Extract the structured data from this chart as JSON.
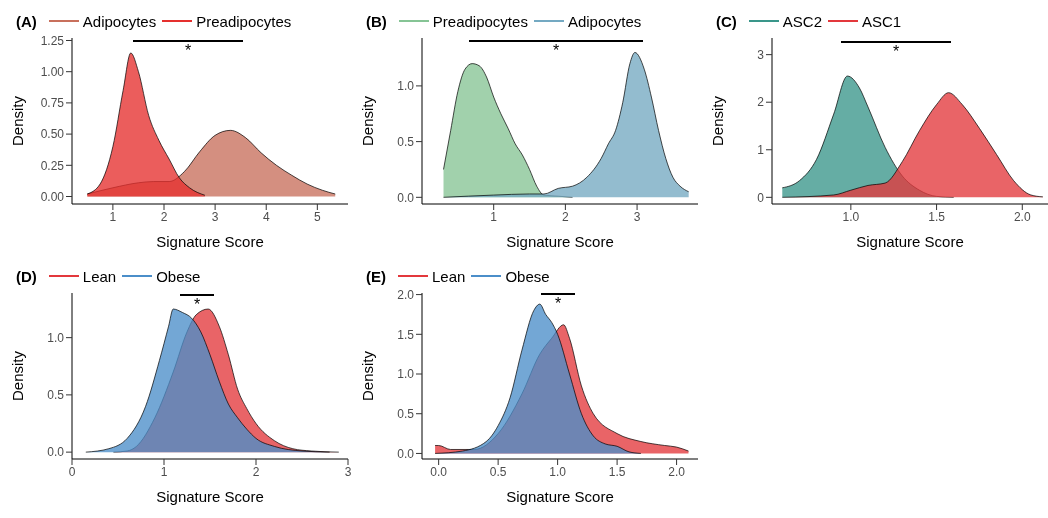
{
  "chart_data": [
    {
      "type": "area",
      "title": "(A)",
      "xlabel": "Signature Score",
      "ylabel": "Density",
      "legend": "top",
      "xlim": [
        0.2,
        5.6
      ],
      "ylim": [
        -0.06,
        1.27
      ],
      "xticks": [
        1,
        2,
        3,
        4,
        5
      ],
      "yticks": [
        {
          "value": 0,
          "label": "0.00"
        },
        {
          "value": 0.25,
          "label": "0.25"
        },
        {
          "value": 0.5,
          "label": "0.50"
        },
        {
          "value": 0.75,
          "label": "0.75"
        },
        {
          "value": 1,
          "label": "1.00"
        },
        {
          "value": 1.25,
          "label": "1.25"
        }
      ],
      "annotations": [
        "*"
      ],
      "series": [
        {
          "name": "Adipocytes",
          "color": "#c8705c",
          "x": [
            0.5,
            1.0,
            1.5,
            1.8,
            2.1,
            2.4,
            2.7,
            3.0,
            3.3,
            3.6,
            3.9,
            4.2,
            4.5,
            4.8,
            5.1,
            5.35
          ],
          "values": [
            0.02,
            0.07,
            0.11,
            0.12,
            0.12,
            0.2,
            0.36,
            0.49,
            0.53,
            0.47,
            0.35,
            0.25,
            0.17,
            0.1,
            0.05,
            0.02
          ]
        },
        {
          "name": "Preadipocytes",
          "color": "#e5302e",
          "x": [
            0.5,
            0.75,
            1.0,
            1.2,
            1.35,
            1.5,
            1.7,
            1.9,
            2.1,
            2.3,
            2.5,
            2.8
          ],
          "values": [
            0.02,
            0.1,
            0.4,
            0.85,
            1.15,
            1.0,
            0.65,
            0.45,
            0.3,
            0.15,
            0.07,
            0.01
          ]
        }
      ]
    },
    {
      "type": "area",
      "title": "(B)",
      "xlabel": "Signature Score",
      "ylabel": "Density",
      "legend": "top",
      "xlim": [
        0,
        3.85
      ],
      "ylim": [
        -0.06,
        1.43
      ],
      "xticks": [
        1,
        2,
        3
      ],
      "yticks": [
        {
          "value": 0,
          "label": "0.0"
        },
        0.5,
        {
          "value": 1,
          "label": "1.0"
        }
      ],
      "annotations": [
        "*"
      ],
      "series": [
        {
          "name": "Preadipocytes",
          "color": "#86c495",
          "x": [
            0.3,
            0.4,
            0.5,
            0.6,
            0.7,
            0.8,
            0.9,
            1.0,
            1.1,
            1.2,
            1.3,
            1.4,
            1.5,
            1.6,
            1.7,
            1.9,
            2.1
          ],
          "values": [
            0.25,
            0.6,
            0.95,
            1.15,
            1.2,
            1.18,
            1.08,
            0.9,
            0.75,
            0.62,
            0.48,
            0.38,
            0.25,
            0.1,
            0.02,
            0.01,
            0.0
          ]
        },
        {
          "name": "Adipocytes",
          "color": "#74a9c2",
          "x": [
            0.3,
            1.0,
            1.5,
            1.7,
            1.9,
            2.1,
            2.3,
            2.5,
            2.6,
            2.7,
            2.8,
            2.9,
            2.97,
            3.1,
            3.2,
            3.3,
            3.4,
            3.5,
            3.6,
            3.72
          ],
          "values": [
            0.0,
            0.02,
            0.03,
            0.03,
            0.08,
            0.1,
            0.18,
            0.35,
            0.48,
            0.6,
            0.85,
            1.2,
            1.3,
            1.15,
            0.9,
            0.6,
            0.35,
            0.18,
            0.1,
            0.05
          ]
        }
      ]
    },
    {
      "type": "area",
      "title": "(C)",
      "xlabel": "Signature Score",
      "ylabel": "Density",
      "legend": "top",
      "xlim": [
        0.54,
        2.15
      ],
      "ylim": [
        -0.14,
        3.35
      ],
      "xticks": [
        {
          "value": 1,
          "label": "1.0"
        },
        1.5,
        {
          "value": 2,
          "label": "2.0"
        }
      ],
      "yticks": [
        0,
        1,
        2,
        3
      ],
      "annotations": [
        "*"
      ],
      "series": [
        {
          "name": "ASC2",
          "color": "#3a968a",
          "x": [
            0.6,
            0.7,
            0.8,
            0.9,
            0.98,
            1.05,
            1.1,
            1.2,
            1.3,
            1.4,
            1.5,
            1.6
          ],
          "values": [
            0.2,
            0.35,
            0.8,
            1.75,
            2.55,
            2.3,
            1.9,
            1.05,
            0.45,
            0.15,
            0.02,
            0.0
          ]
        },
        {
          "name": "ASC1",
          "color": "#e3383c",
          "x": [
            0.6,
            0.9,
            1.0,
            1.1,
            1.2,
            1.3,
            1.4,
            1.5,
            1.57,
            1.65,
            1.75,
            1.85,
            1.95,
            2.05,
            2.12
          ],
          "values": [
            0.0,
            0.05,
            0.15,
            0.25,
            0.3,
            0.75,
            1.4,
            1.95,
            2.2,
            1.95,
            1.45,
            0.9,
            0.35,
            0.05,
            0.01
          ]
        }
      ]
    },
    {
      "type": "area",
      "title": "(D)",
      "xlabel": "Signature Score",
      "ylabel": "Density",
      "legend": "top",
      "xlim": [
        0,
        3.0
      ],
      "ylim": [
        -0.06,
        1.39
      ],
      "xticks": [
        0,
        1,
        2,
        3
      ],
      "yticks": [
        {
          "value": 0,
          "label": "0.0"
        },
        0.5,
        {
          "value": 1,
          "label": "1.0"
        }
      ],
      "annotations": [
        "*"
      ],
      "series": [
        {
          "name": "Lean",
          "color": "#e3383c",
          "x": [
            0.45,
            0.6,
            0.7,
            0.9,
            1.1,
            1.25,
            1.35,
            1.48,
            1.6,
            1.7,
            1.8,
            1.9,
            2.0,
            2.2,
            2.4,
            2.6,
            2.9
          ],
          "values": [
            0,
            0.01,
            0.05,
            0.3,
            0.7,
            1.05,
            1.2,
            1.25,
            1.1,
            0.85,
            0.55,
            0.38,
            0.25,
            0.1,
            0.03,
            0.01,
            0
          ]
        },
        {
          "name": "Obese",
          "color": "#4b8ec9",
          "x": [
            0.15,
            0.4,
            0.6,
            0.8,
            0.95,
            1.05,
            1.1,
            1.2,
            1.3,
            1.4,
            1.5,
            1.6,
            1.7,
            1.8,
            1.9,
            2.0,
            2.2,
            2.5,
            2.8
          ],
          "values": [
            0,
            0.03,
            0.12,
            0.4,
            0.8,
            1.1,
            1.25,
            1.22,
            1.17,
            1.05,
            0.85,
            0.62,
            0.42,
            0.3,
            0.2,
            0.12,
            0.05,
            0.01,
            0
          ]
        }
      ]
    },
    {
      "type": "area",
      "title": "(E)",
      "xlabel": "Signature Score",
      "ylabel": "Density",
      "legend": "top",
      "xlim": [
        -0.14,
        2.18
      ],
      "ylim": [
        -0.07,
        2.02
      ],
      "xticks": [
        {
          "value": 0,
          "label": "0.0"
        },
        0.5,
        {
          "value": 1,
          "label": "1.0"
        },
        1.5,
        {
          "value": 2,
          "label": "2.0"
        }
      ],
      "yticks": [
        {
          "value": 0,
          "label": "0.0"
        },
        0.5,
        {
          "value": 1,
          "label": "1.0"
        },
        1.5,
        {
          "value": 2,
          "label": "2.0"
        }
      ],
      "annotations": [
        "*"
      ],
      "series": [
        {
          "name": "Lean",
          "color": "#e3383c",
          "x": [
            -0.03,
            0.0,
            0.1,
            0.3,
            0.5,
            0.7,
            0.85,
            0.95,
            1.05,
            1.1,
            1.2,
            1.3,
            1.5,
            1.7,
            1.9,
            2.0,
            2.1
          ],
          "values": [
            0.1,
            0.1,
            0.05,
            0.05,
            0.25,
            0.75,
            1.25,
            1.45,
            1.62,
            1.45,
            0.85,
            0.5,
            0.25,
            0.15,
            0.1,
            0.08,
            0.03
          ]
        },
        {
          "name": "Obese",
          "color": "#4b8ec9",
          "x": [
            -0.03,
            0.2,
            0.4,
            0.5,
            0.6,
            0.7,
            0.8,
            0.85,
            0.9,
            0.95,
            1.0,
            1.1,
            1.2,
            1.3,
            1.4,
            1.5,
            1.6,
            1.7
          ],
          "values": [
            0,
            0.03,
            0.15,
            0.35,
            0.7,
            1.3,
            1.8,
            1.88,
            1.75,
            1.65,
            1.5,
            1.0,
            0.5,
            0.22,
            0.12,
            0.09,
            0.02,
            0.0
          ]
        }
      ]
    }
  ]
}
